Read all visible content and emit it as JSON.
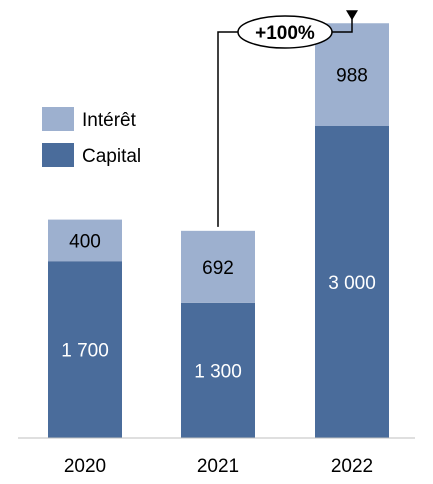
{
  "chart_data": {
    "type": "bar",
    "stacked": true,
    "categories": [
      "2020",
      "2021",
      "2022"
    ],
    "series": [
      {
        "name": "Capital",
        "color": "#4A6C9B",
        "label_color": "#ffffff",
        "values": [
          1700,
          1300,
          3000
        ],
        "labels": [
          "1 700",
          "1 300",
          "3 000"
        ]
      },
      {
        "name": "Intérêt",
        "color": "#9DB0CF",
        "label_color": "#000000",
        "values": [
          400,
          692,
          988
        ],
        "labels": [
          "400",
          "692",
          "988"
        ]
      }
    ],
    "ylim": [
      0,
      4000
    ],
    "grid": false,
    "legend": "top-left",
    "annotation": {
      "text": "+100%",
      "from": "2021",
      "to": "2022"
    }
  }
}
